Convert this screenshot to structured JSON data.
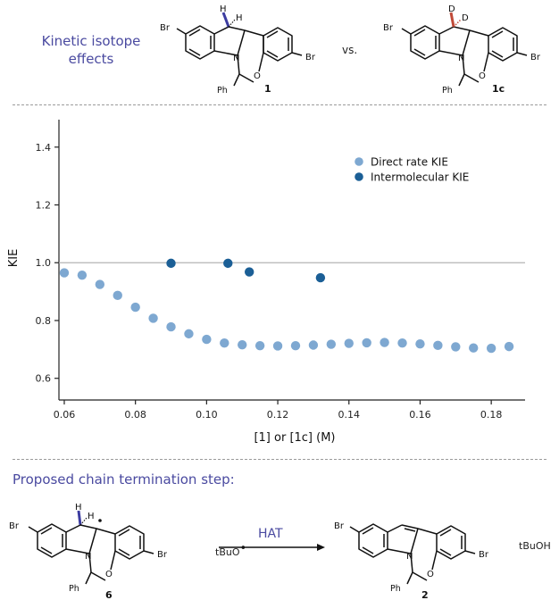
{
  "header": {
    "heading": "Kinetic isotope effects",
    "heading_line1": "Kinetic isotope",
    "heading_line2": "effects",
    "vs_label": "vs.",
    "compound_left": "1",
    "compound_right": "1c"
  },
  "structure_labels": {
    "br": "Br",
    "n": "N",
    "o": "O",
    "ph": "Ph",
    "h": "H",
    "d": "D"
  },
  "chart_data": {
    "type": "scatter",
    "title": "",
    "xlabel": "[1] or [1c] (M)",
    "ylabel": "KIE",
    "xlim": [
      0.0585,
      0.1895
    ],
    "ylim": [
      0.525,
      1.495
    ],
    "xticks": [
      0.06,
      0.08,
      0.1,
      0.12,
      0.14,
      0.16,
      0.18
    ],
    "xtick_labels": [
      "0.06",
      "0.08",
      "0.10",
      "0.12",
      "0.14",
      "0.16",
      "0.18"
    ],
    "yticks": [
      0.6,
      0.8,
      1.0,
      1.2,
      1.4
    ],
    "ytick_labels": [
      "0.6",
      "0.8",
      "1.0",
      "1.2",
      "1.4"
    ],
    "reference_line": 1.0,
    "grid": false,
    "legend_position": "top-right",
    "series": [
      {
        "name": "Direct rate KIE",
        "color": "#7ea8d1",
        "x": [
          0.06,
          0.065,
          0.07,
          0.075,
          0.08,
          0.085,
          0.09,
          0.095,
          0.1,
          0.105,
          0.11,
          0.115,
          0.12,
          0.125,
          0.13,
          0.135,
          0.14,
          0.145,
          0.15,
          0.155,
          0.16,
          0.165,
          0.17,
          0.175,
          0.18,
          0.185
        ],
        "y": [
          0.965,
          0.957,
          0.925,
          0.887,
          0.846,
          0.808,
          0.778,
          0.754,
          0.735,
          0.722,
          0.716,
          0.713,
          0.712,
          0.713,
          0.715,
          0.718,
          0.721,
          0.723,
          0.724,
          0.722,
          0.719,
          0.714,
          0.709,
          0.705,
          0.704,
          0.71
        ]
      },
      {
        "name": "Intermolecular KIE",
        "color": "#1b5f96",
        "x": [
          0.09,
          0.106,
          0.112,
          0.132
        ],
        "y": [
          0.998,
          0.998,
          0.968,
          0.948
        ]
      }
    ]
  },
  "chain": {
    "title": "Proposed chain termination step:",
    "reagent": "tBuO",
    "arrow_label": "HAT",
    "product": "tBuOH",
    "compound_left": "6",
    "compound_right": "2"
  },
  "colors": {
    "accent": "#4a4aa0",
    "deuterium_bond": "#c04a38",
    "hydrogen_bond": "#3c3ca0"
  }
}
